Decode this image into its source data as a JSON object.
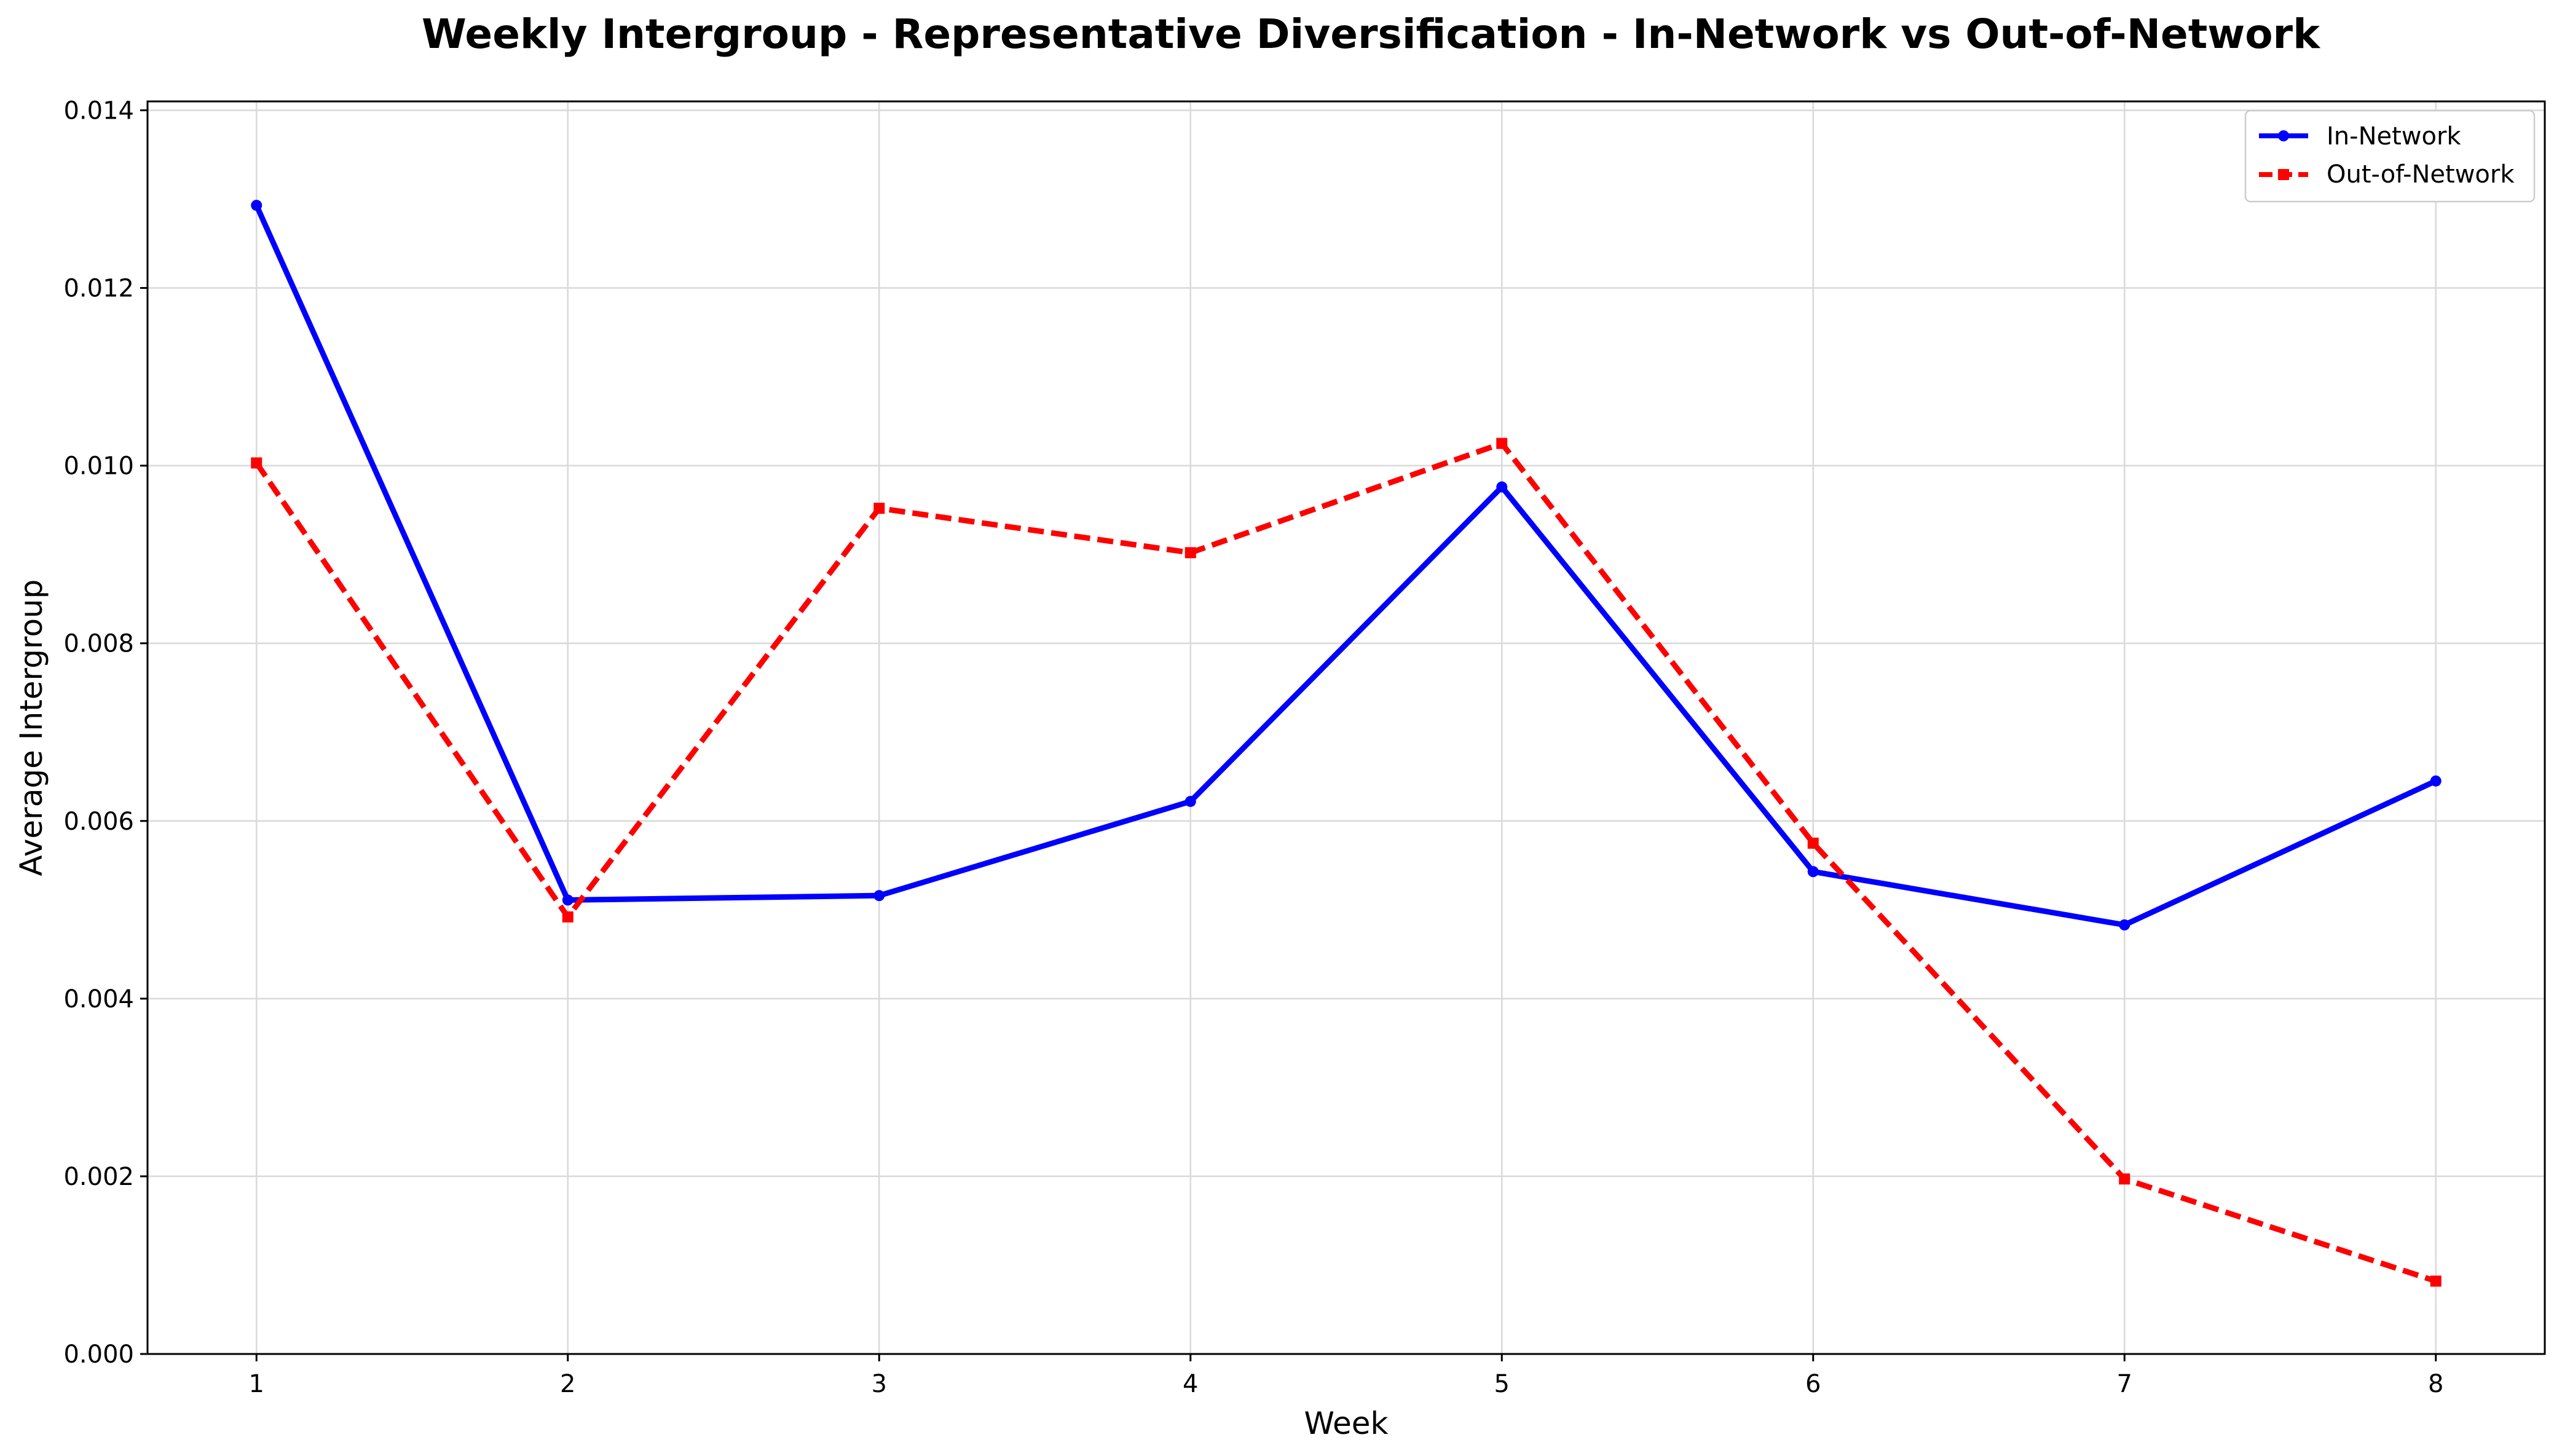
{
  "chart_data": {
    "type": "line",
    "title": "Weekly Intergroup - Representative Diversification - In-Network vs Out-of-Network",
    "xlabel": "Week",
    "ylabel": "Average Intergroup",
    "x": [
      1,
      2,
      3,
      4,
      5,
      6,
      7,
      8
    ],
    "x_tick_labels": [
      "1",
      "2",
      "3",
      "4",
      "5",
      "6",
      "7",
      "8"
    ],
    "y_tick_labels": [
      "0.000",
      "0.002",
      "0.004",
      "0.006",
      "0.008",
      "0.010",
      "0.012",
      "0.014"
    ],
    "y_ticks": [
      0,
      0.002,
      0.004,
      0.006,
      0.008,
      0.01,
      0.012,
      0.014
    ],
    "ylim": [
      0,
      0.0141
    ],
    "xlim": [
      0.65,
      8.35
    ],
    "grid": true,
    "legend_position": "top-right",
    "series": [
      {
        "name": "In-Network",
        "color": "#0000ff",
        "line_style": "solid",
        "marker": "circle",
        "values": [
          0.01293,
          0.00511,
          0.00516,
          0.00622,
          0.00976,
          0.00543,
          0.00483,
          0.00645
        ]
      },
      {
        "name": "Out-of-Network",
        "color": "#ff0000",
        "line_style": "dashed",
        "marker": "square",
        "values": [
          0.01003,
          0.00492,
          0.00952,
          0.00902,
          0.01025,
          0.00575,
          0.00197,
          0.00082
        ]
      }
    ]
  }
}
